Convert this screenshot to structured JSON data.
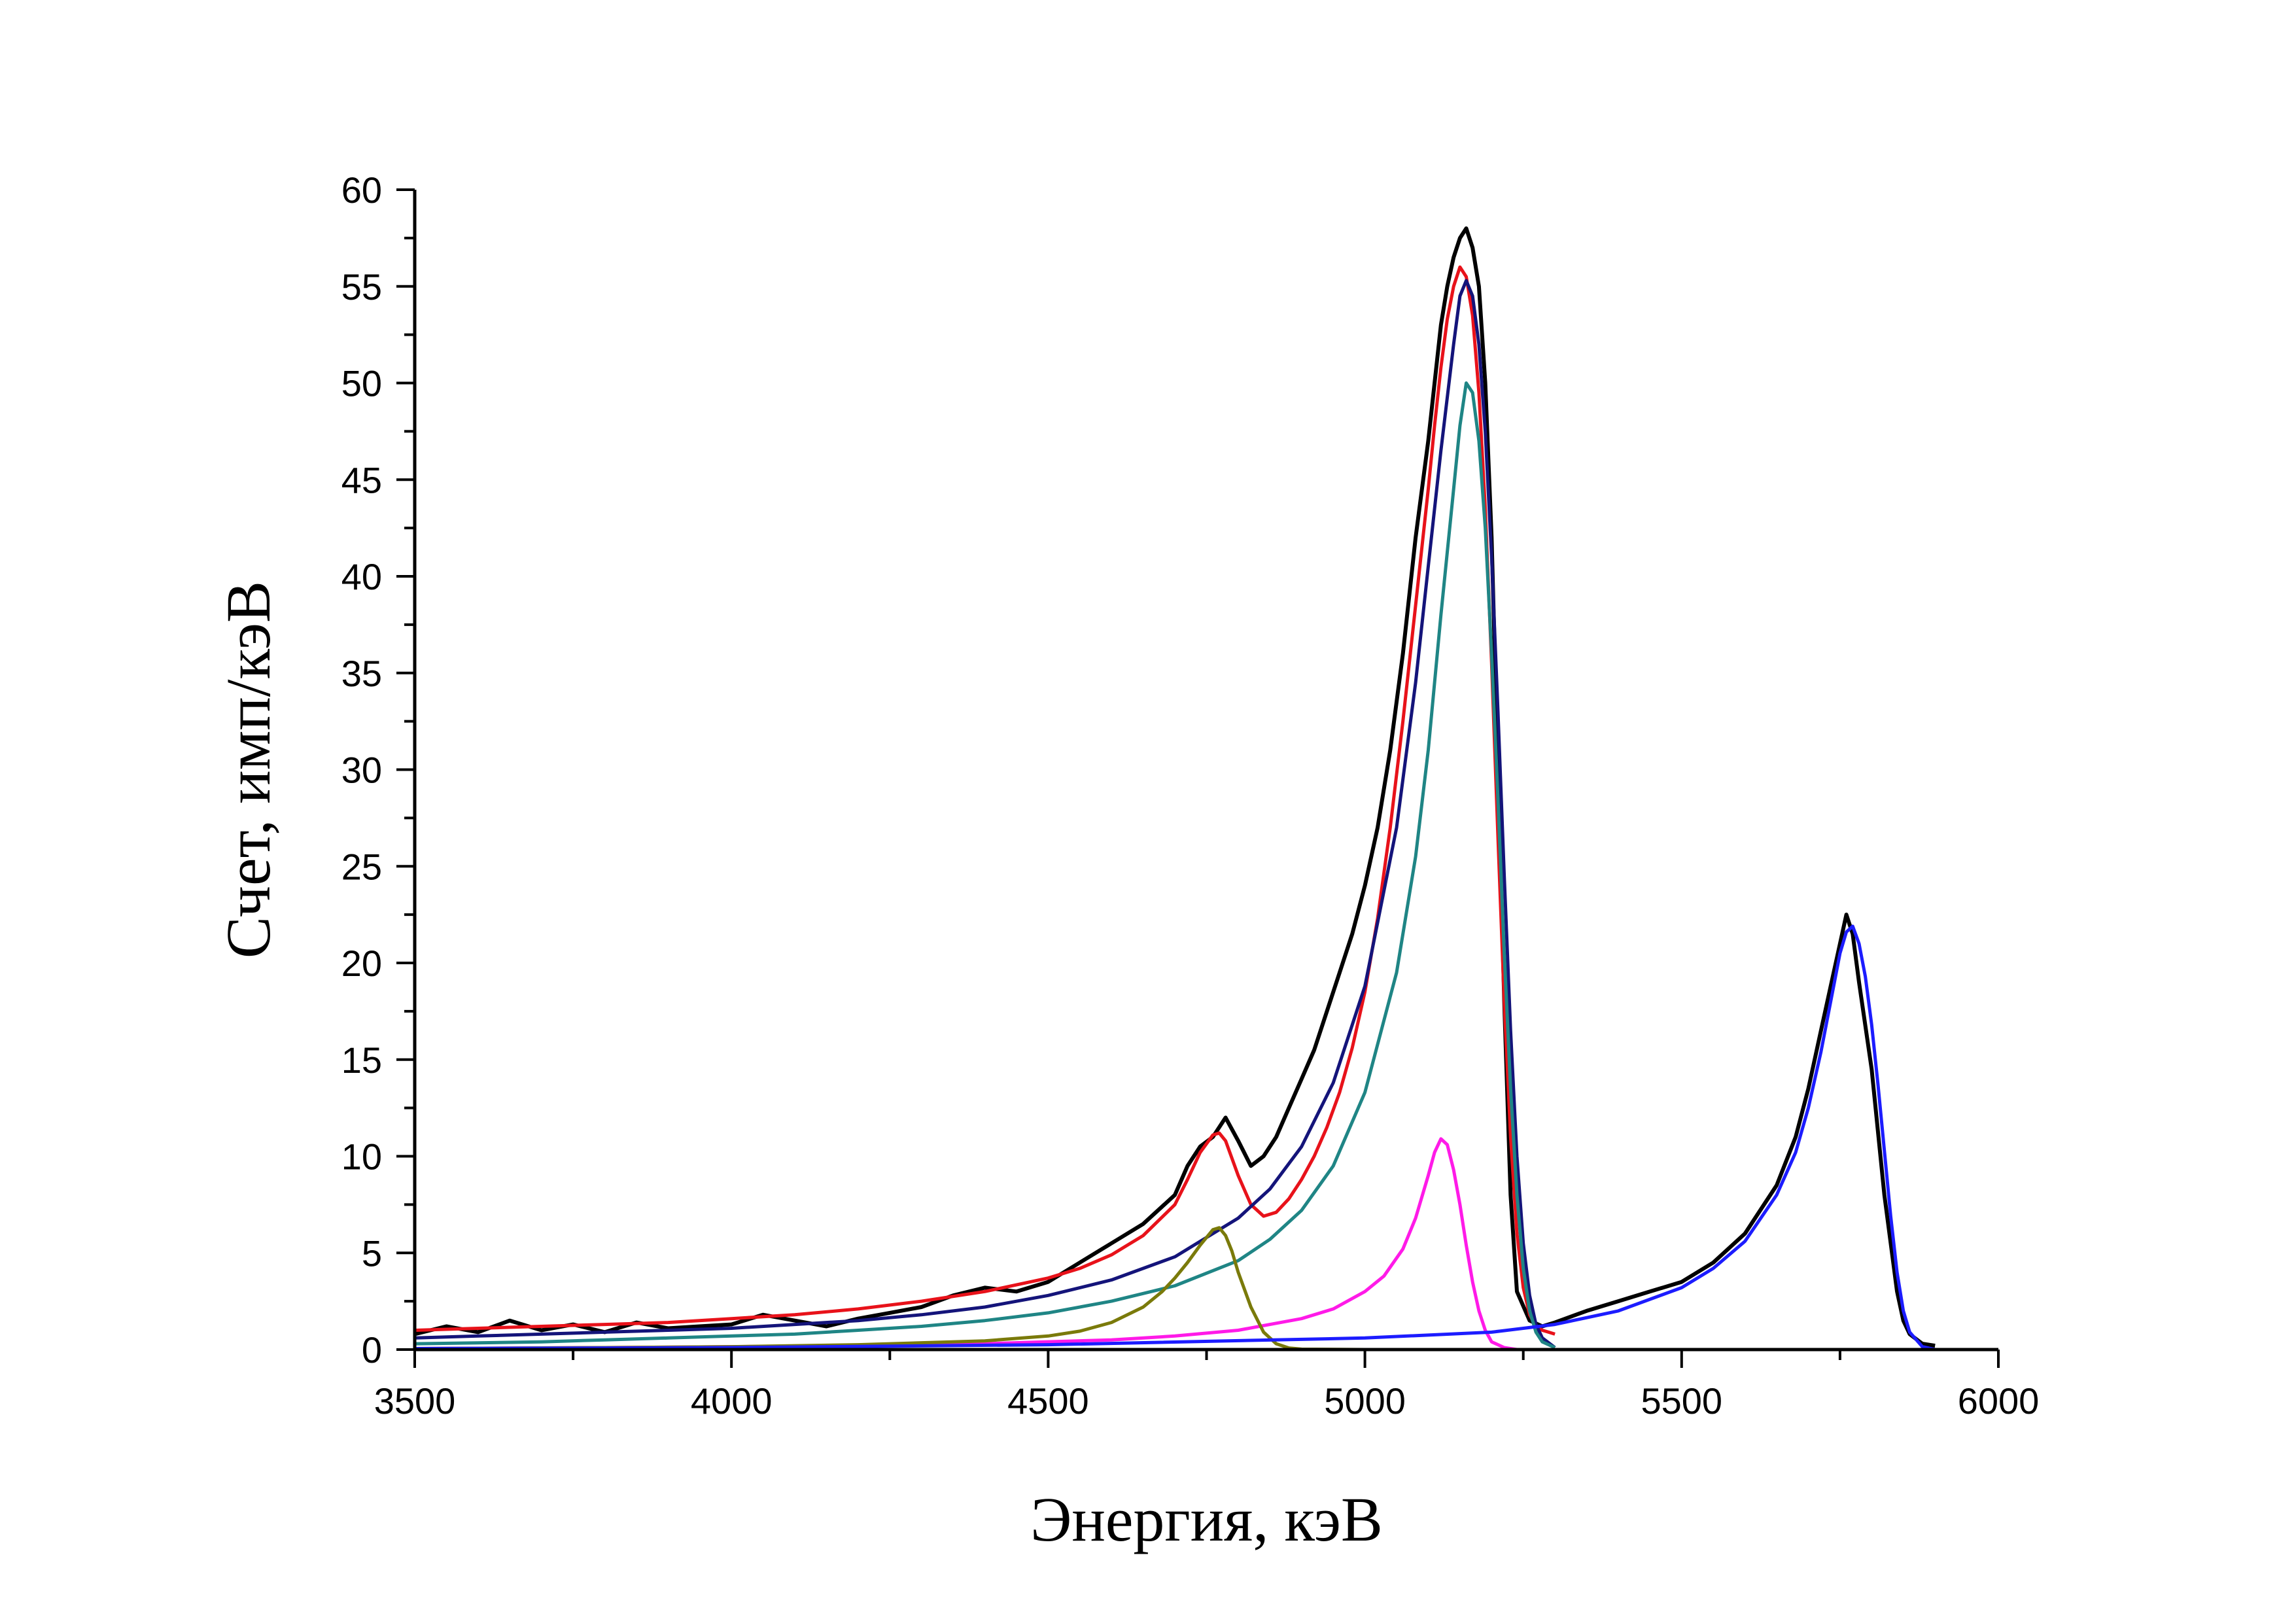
{
  "chart_data": {
    "type": "line",
    "title": "",
    "xlabel": "Энергия, кэВ",
    "ylabel": "Счет, имп/кэВ",
    "xlim": [
      3500,
      6000
    ],
    "ylim": [
      0,
      60
    ],
    "xticks": [
      3500,
      4000,
      4500,
      5000,
      5500,
      6000
    ],
    "yticks": [
      0,
      5,
      10,
      15,
      20,
      25,
      30,
      35,
      40,
      45,
      50,
      55,
      60
    ],
    "grid": false,
    "legend": "none",
    "series": [
      {
        "color": "#000000",
        "kind": "measured",
        "x": [
          3500,
          3550,
          3600,
          3650,
          3700,
          3750,
          3800,
          3850,
          3900,
          3950,
          4000,
          4050,
          4100,
          4150,
          4200,
          4250,
          4300,
          4350,
          4400,
          4450,
          4500,
          4550,
          4600,
          4650,
          4700,
          4720,
          4740,
          4760,
          4780,
          4800,
          4820,
          4840,
          4860,
          4880,
          4900,
          4920,
          4940,
          4960,
          4980,
          5000,
          5020,
          5040,
          5060,
          5080,
          5100,
          5110,
          5120,
          5130,
          5140,
          5150,
          5160,
          5170,
          5180,
          5190,
          5200,
          5210,
          5220,
          5230,
          5240,
          5260,
          5280,
          5300,
          5350,
          5400,
          5450,
          5500,
          5550,
          5600,
          5650,
          5680,
          5700,
          5720,
          5740,
          5750,
          5760,
          5770,
          5780,
          5800,
          5820,
          5840,
          5850,
          5860,
          5880,
          5900
        ],
        "y": [
          0.8,
          1.2,
          0.9,
          1.5,
          1.0,
          1.3,
          0.9,
          1.4,
          1.1,
          1.2,
          1.3,
          1.8,
          1.5,
          1.2,
          1.6,
          1.9,
          2.2,
          2.8,
          3.2,
          3.0,
          3.5,
          4.5,
          5.5,
          6.5,
          8.0,
          9.5,
          10.5,
          11.0,
          12.0,
          10.8,
          9.5,
          10.0,
          11.0,
          12.5,
          14.0,
          15.5,
          17.5,
          19.5,
          21.5,
          24.0,
          27.0,
          31.0,
          36.0,
          42.0,
          47.0,
          50.0,
          53.0,
          55.0,
          56.5,
          57.5,
          58.0,
          57.0,
          55.0,
          50.0,
          42.0,
          30.0,
          18.0,
          8.0,
          3.0,
          1.5,
          1.2,
          1.4,
          2.0,
          2.5,
          3.0,
          3.5,
          4.5,
          6.0,
          8.5,
          11.0,
          13.5,
          16.5,
          19.5,
          21.0,
          22.5,
          21.5,
          19.0,
          14.5,
          8.0,
          3.0,
          1.5,
          0.8,
          0.3,
          0.2
        ]
      },
      {
        "color": "#e8121a",
        "kind": "fit-sum",
        "x": [
          3500,
          3600,
          3700,
          3800,
          3900,
          4000,
          4100,
          4200,
          4300,
          4400,
          4500,
          4550,
          4600,
          4650,
          4700,
          4720,
          4740,
          4760,
          4770,
          4780,
          4800,
          4820,
          4840,
          4860,
          4880,
          4900,
          4920,
          4940,
          4960,
          4980,
          5000,
          5020,
          5040,
          5060,
          5080,
          5100,
          5110,
          5120,
          5130,
          5140,
          5150,
          5160,
          5170,
          5180,
          5190,
          5200,
          5210,
          5220,
          5230,
          5240,
          5250,
          5260,
          5270,
          5280,
          5290,
          5300
        ],
        "y": [
          1.0,
          1.1,
          1.2,
          1.3,
          1.4,
          1.6,
          1.8,
          2.1,
          2.5,
          3.0,
          3.7,
          4.2,
          4.9,
          5.9,
          7.5,
          8.8,
          10.2,
          11.1,
          11.2,
          10.8,
          9.0,
          7.5,
          6.9,
          7.1,
          7.8,
          8.8,
          10.0,
          11.5,
          13.3,
          15.6,
          18.5,
          22.3,
          27.0,
          32.5,
          38.5,
          44.5,
          47.8,
          50.8,
          53.3,
          55.0,
          56.0,
          55.5,
          53.5,
          49.5,
          43.5,
          35.5,
          26.5,
          18.0,
          11.0,
          6.0,
          3.2,
          1.8,
          1.2,
          1.0,
          0.9,
          0.8
        ]
      },
      {
        "color": "#14147a",
        "kind": "component",
        "x": [
          3500,
          3600,
          3700,
          3800,
          3900,
          4000,
          4100,
          4200,
          4300,
          4400,
          4500,
          4600,
          4700,
          4800,
          4850,
          4900,
          4950,
          5000,
          5050,
          5080,
          5100,
          5120,
          5140,
          5150,
          5160,
          5170,
          5180,
          5190,
          5200,
          5210,
          5220,
          5230,
          5240,
          5250,
          5260,
          5270,
          5280,
          5300
        ],
        "y": [
          0.6,
          0.7,
          0.8,
          0.9,
          1.0,
          1.1,
          1.3,
          1.5,
          1.8,
          2.2,
          2.8,
          3.6,
          4.8,
          6.8,
          8.3,
          10.5,
          13.8,
          18.8,
          27.0,
          34.5,
          40.5,
          46.5,
          52.0,
          54.5,
          55.3,
          54.5,
          52.0,
          47.5,
          41.0,
          33.0,
          24.5,
          16.5,
          10.0,
          5.5,
          2.8,
          1.3,
          0.6,
          0.1
        ]
      },
      {
        "color": "#1f8585",
        "kind": "component",
        "x": [
          3500,
          3600,
          3700,
          3800,
          3900,
          4000,
          4100,
          4200,
          4300,
          4400,
          4500,
          4600,
          4700,
          4800,
          4850,
          4900,
          4950,
          5000,
          5050,
          5080,
          5100,
          5120,
          5140,
          5150,
          5160,
          5170,
          5180,
          5190,
          5200,
          5210,
          5220,
          5230,
          5240,
          5250,
          5260,
          5270,
          5280,
          5300
        ],
        "y": [
          0.3,
          0.35,
          0.4,
          0.5,
          0.6,
          0.7,
          0.8,
          1.0,
          1.2,
          1.5,
          1.9,
          2.5,
          3.3,
          4.6,
          5.7,
          7.2,
          9.5,
          13.3,
          19.5,
          25.5,
          31.0,
          38.0,
          44.5,
          47.8,
          50.0,
          49.5,
          47.0,
          42.5,
          36.0,
          28.5,
          20.5,
          13.5,
          8.0,
          4.2,
          2.0,
          0.9,
          0.4,
          0.1
        ]
      },
      {
        "color": "#ff1ae8",
        "kind": "component",
        "x": [
          3500,
          3800,
          4000,
          4200,
          4400,
          4600,
          4700,
          4800,
          4900,
          4950,
          5000,
          5030,
          5060,
          5080,
          5100,
          5110,
          5120,
          5130,
          5140,
          5150,
          5160,
          5170,
          5180,
          5190,
          5200,
          5220,
          5240,
          5260
        ],
        "y": [
          0.05,
          0.1,
          0.15,
          0.2,
          0.3,
          0.5,
          0.7,
          1.0,
          1.6,
          2.1,
          3.0,
          3.8,
          5.2,
          6.8,
          9.0,
          10.2,
          10.9,
          10.6,
          9.3,
          7.5,
          5.4,
          3.5,
          2.0,
          1.0,
          0.4,
          0.1,
          0.0,
          0.0
        ]
      },
      {
        "color": "#7a7a0a",
        "kind": "component",
        "x": [
          3500,
          3800,
          4000,
          4200,
          4400,
          4500,
          4550,
          4600,
          4650,
          4680,
          4700,
          4720,
          4740,
          4760,
          4770,
          4780,
          4790,
          4800,
          4820,
          4840,
          4860,
          4880,
          4900,
          5000
        ],
        "y": [
          0.05,
          0.1,
          0.15,
          0.25,
          0.45,
          0.7,
          0.95,
          1.4,
          2.2,
          3.0,
          3.7,
          4.5,
          5.4,
          6.2,
          6.3,
          5.9,
          5.1,
          4.0,
          2.2,
          0.9,
          0.3,
          0.08,
          0.02,
          0.0
        ]
      },
      {
        "color": "#1c1cff",
        "kind": "component",
        "x": [
          3500,
          4000,
          4500,
          5000,
          5200,
          5300,
          5400,
          5500,
          5550,
          5600,
          5650,
          5680,
          5700,
          5720,
          5740,
          5750,
          5760,
          5770,
          5780,
          5790,
          5800,
          5810,
          5820,
          5830,
          5840,
          5850,
          5860,
          5880,
          5900
        ],
        "y": [
          0.05,
          0.1,
          0.25,
          0.6,
          0.9,
          1.3,
          2.0,
          3.2,
          4.2,
          5.6,
          8.0,
          10.2,
          12.5,
          15.4,
          18.8,
          20.5,
          21.6,
          21.9,
          21.0,
          19.3,
          16.8,
          13.7,
          10.3,
          6.9,
          4.0,
          2.0,
          0.9,
          0.15,
          0.0
        ]
      }
    ]
  }
}
